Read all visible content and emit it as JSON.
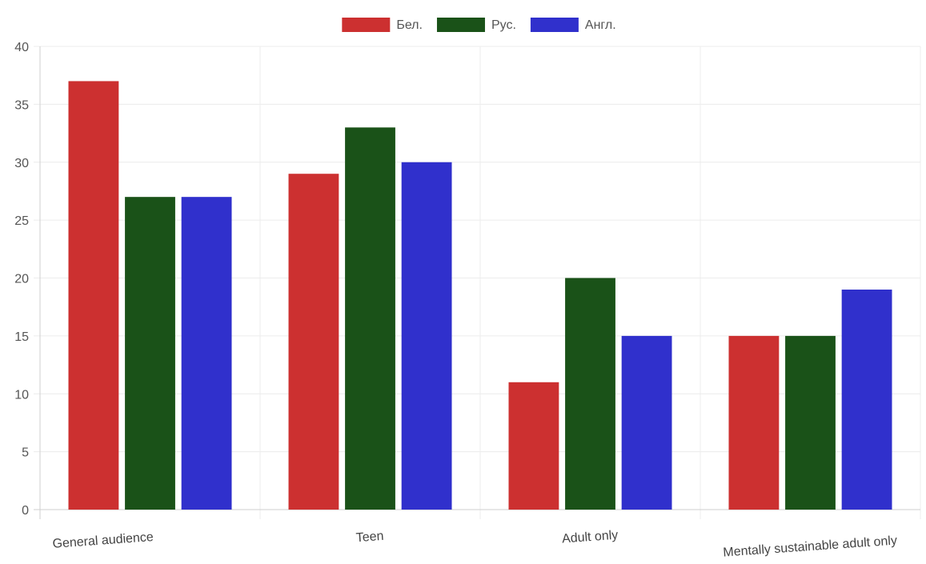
{
  "chart_data": {
    "type": "bar",
    "title": "",
    "xlabel": "",
    "ylabel": "",
    "categories": [
      "General audience",
      "Teen",
      "Adult only",
      "Mentally sustainable adult only"
    ],
    "series": [
      {
        "name": "Бел.",
        "color": "#cc3030",
        "values": [
          37,
          29,
          11,
          15
        ]
      },
      {
        "name": "Рус.",
        "color": "#1a5218",
        "values": [
          27,
          33,
          20,
          15
        ]
      },
      {
        "name": "Англ.",
        "color": "#3030cc",
        "values": [
          27,
          30,
          15,
          19
        ]
      }
    ],
    "ylim": [
      0,
      40
    ],
    "yticks": [
      0,
      5,
      10,
      15,
      20,
      25,
      30,
      35,
      40
    ],
    "grid": true,
    "legend_position": "top-center"
  }
}
